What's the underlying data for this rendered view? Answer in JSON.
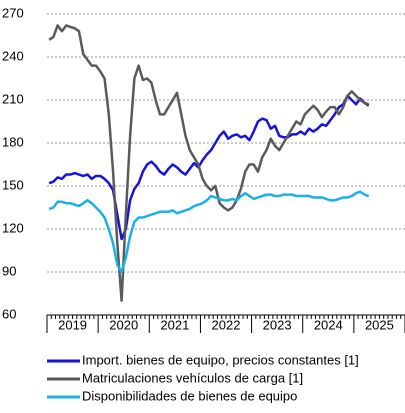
{
  "chart_data": {
    "type": "line",
    "categories": [
      null,
      null,
      null,
      null,
      null,
      null,
      "2019",
      null,
      null,
      null,
      null,
      null,
      null,
      null,
      null,
      null,
      null,
      null,
      "2020",
      null,
      null,
      null,
      null,
      null,
      null,
      null,
      null,
      null,
      null,
      null,
      "2021",
      null,
      null,
      null,
      null,
      null,
      null,
      null,
      null,
      null,
      null,
      null,
      "2022",
      null,
      null,
      null,
      null,
      null,
      null,
      null,
      null,
      null,
      null,
      null,
      "2023",
      null,
      null,
      null,
      null,
      null,
      null,
      null,
      null,
      null,
      null,
      null,
      "2024",
      null,
      null,
      null,
      null,
      null,
      null,
      null,
      null,
      null,
      null,
      null,
      "2025",
      null,
      null,
      null,
      null,
      null
    ],
    "series": [
      {
        "name": "Import. bienes de equipo, precios constantes [1]",
        "color": "#1414dc",
        "values": [
          152,
          153,
          156,
          155,
          158,
          158,
          159,
          158,
          157,
          158,
          155,
          157,
          157,
          155,
          152,
          147,
          130,
          113,
          120,
          140,
          148,
          152,
          160,
          165,
          167,
          164,
          160,
          158,
          162,
          165,
          163,
          160,
          158,
          162,
          166,
          163,
          168,
          172,
          175,
          180,
          185,
          188,
          183,
          185,
          186,
          184,
          185,
          182,
          188,
          195,
          197,
          196,
          190,
          192,
          185,
          184,
          184,
          186,
          186,
          188,
          186,
          190,
          188,
          190,
          193,
          192,
          196,
          200,
          205,
          207,
          213,
          210,
          207,
          211,
          208,
          206,
          null,
          null,
          null,
          null,
          null,
          null,
          null,
          null
        ]
      },
      {
        "name": "Matriculaciones vehículos de carga [1]",
        "color": "#5a5a5a",
        "values": [
          252,
          254,
          262,
          258,
          262,
          261,
          260,
          258,
          242,
          238,
          234,
          234,
          230,
          225,
          200,
          160,
          110,
          70,
          130,
          185,
          225,
          234,
          224,
          225,
          222,
          210,
          200,
          200,
          205,
          210,
          215,
          200,
          185,
          175,
          170,
          165,
          155,
          150,
          147,
          150,
          138,
          135,
          133,
          135,
          140,
          148,
          160,
          165,
          165,
          160,
          170,
          175,
          183,
          178,
          175,
          180,
          185,
          190,
          195,
          193,
          200,
          203,
          206,
          203,
          198,
          202,
          205,
          205,
          200,
          205,
          213,
          216,
          213,
          210,
          208,
          207,
          null,
          null,
          null,
          null,
          null,
          null,
          null,
          null
        ]
      },
      {
        "name": "Disponibilidades de bienes de equipo",
        "color": "#1ab0e8",
        "values": [
          134,
          135,
          139,
          139,
          138,
          138,
          137,
          136,
          138,
          140,
          138,
          135,
          132,
          128,
          120,
          110,
          95,
          90,
          100,
          115,
          125,
          128,
          128,
          129,
          130,
          131,
          132,
          132,
          132,
          133,
          131,
          132,
          133,
          134,
          136,
          137,
          138,
          140,
          143,
          142,
          141,
          140,
          140,
          141,
          140,
          143,
          145,
          143,
          141,
          142,
          143,
          144,
          144,
          143,
          143,
          144,
          144,
          144,
          143,
          143,
          143,
          143,
          142,
          142,
          142,
          141,
          140,
          140,
          141,
          142,
          142,
          143,
          145,
          146,
          144,
          143,
          null,
          null,
          null,
          null,
          null,
          null,
          null,
          null
        ]
      }
    ],
    "ylim": [
      60,
      270
    ],
    "yticks": [
      60,
      90,
      120,
      150,
      180,
      210,
      240,
      270
    ],
    "grid": true
  }
}
